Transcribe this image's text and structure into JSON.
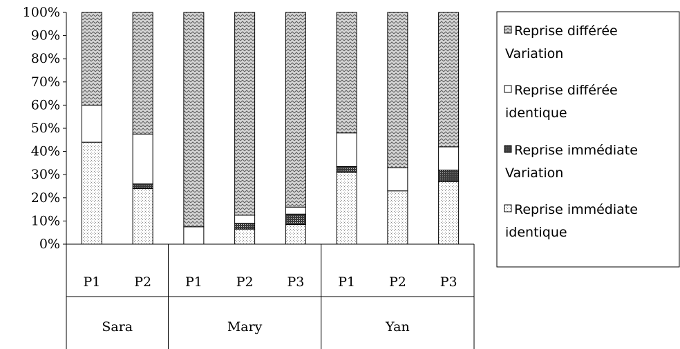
{
  "chart_data": {
    "type": "bar",
    "stacked": "percent",
    "y_ticks": [
      "0%",
      "10%",
      "20%",
      "30%",
      "40%",
      "50%",
      "60%",
      "70%",
      "80%",
      "90%",
      "100%"
    ],
    "ylim": [
      0,
      100
    ],
    "groups": [
      {
        "name": "Sara",
        "categories": [
          "P1",
          "P2"
        ]
      },
      {
        "name": "Mary",
        "categories": [
          "P1",
          "P2",
          "P3"
        ]
      },
      {
        "name": "Yan",
        "categories": [
          "P1",
          "P2",
          "P3"
        ]
      }
    ],
    "series": [
      {
        "name": "Reprise immédiate identique",
        "legend_lines": [
          "Reprise immédiate",
          "identique"
        ],
        "pattern": "dots",
        "values": [
          44,
          24,
          0,
          6.5,
          8.5,
          31,
          23,
          27
        ]
      },
      {
        "name": "Reprise immédiate Variation",
        "legend_lines": [
          "Reprise immédiate",
          "Variation"
        ],
        "pattern": "dark-dots",
        "values": [
          0,
          2,
          0,
          2.5,
          4.5,
          2.5,
          0,
          5
        ]
      },
      {
        "name": "Reprise différée identique",
        "legend_lines": [
          "Reprise différée",
          "identique"
        ],
        "pattern": "white",
        "values": [
          16,
          21.5,
          7.5,
          3.5,
          3,
          14.5,
          10,
          10
        ]
      },
      {
        "name": "Reprise différée Variation",
        "legend_lines": [
          "Reprise différée",
          "Variation"
        ],
        "pattern": "zigzag",
        "values": [
          40,
          52.5,
          92.5,
          87.5,
          84,
          52,
          67,
          58
        ]
      }
    ],
    "legend_position": "right",
    "grid": false
  }
}
